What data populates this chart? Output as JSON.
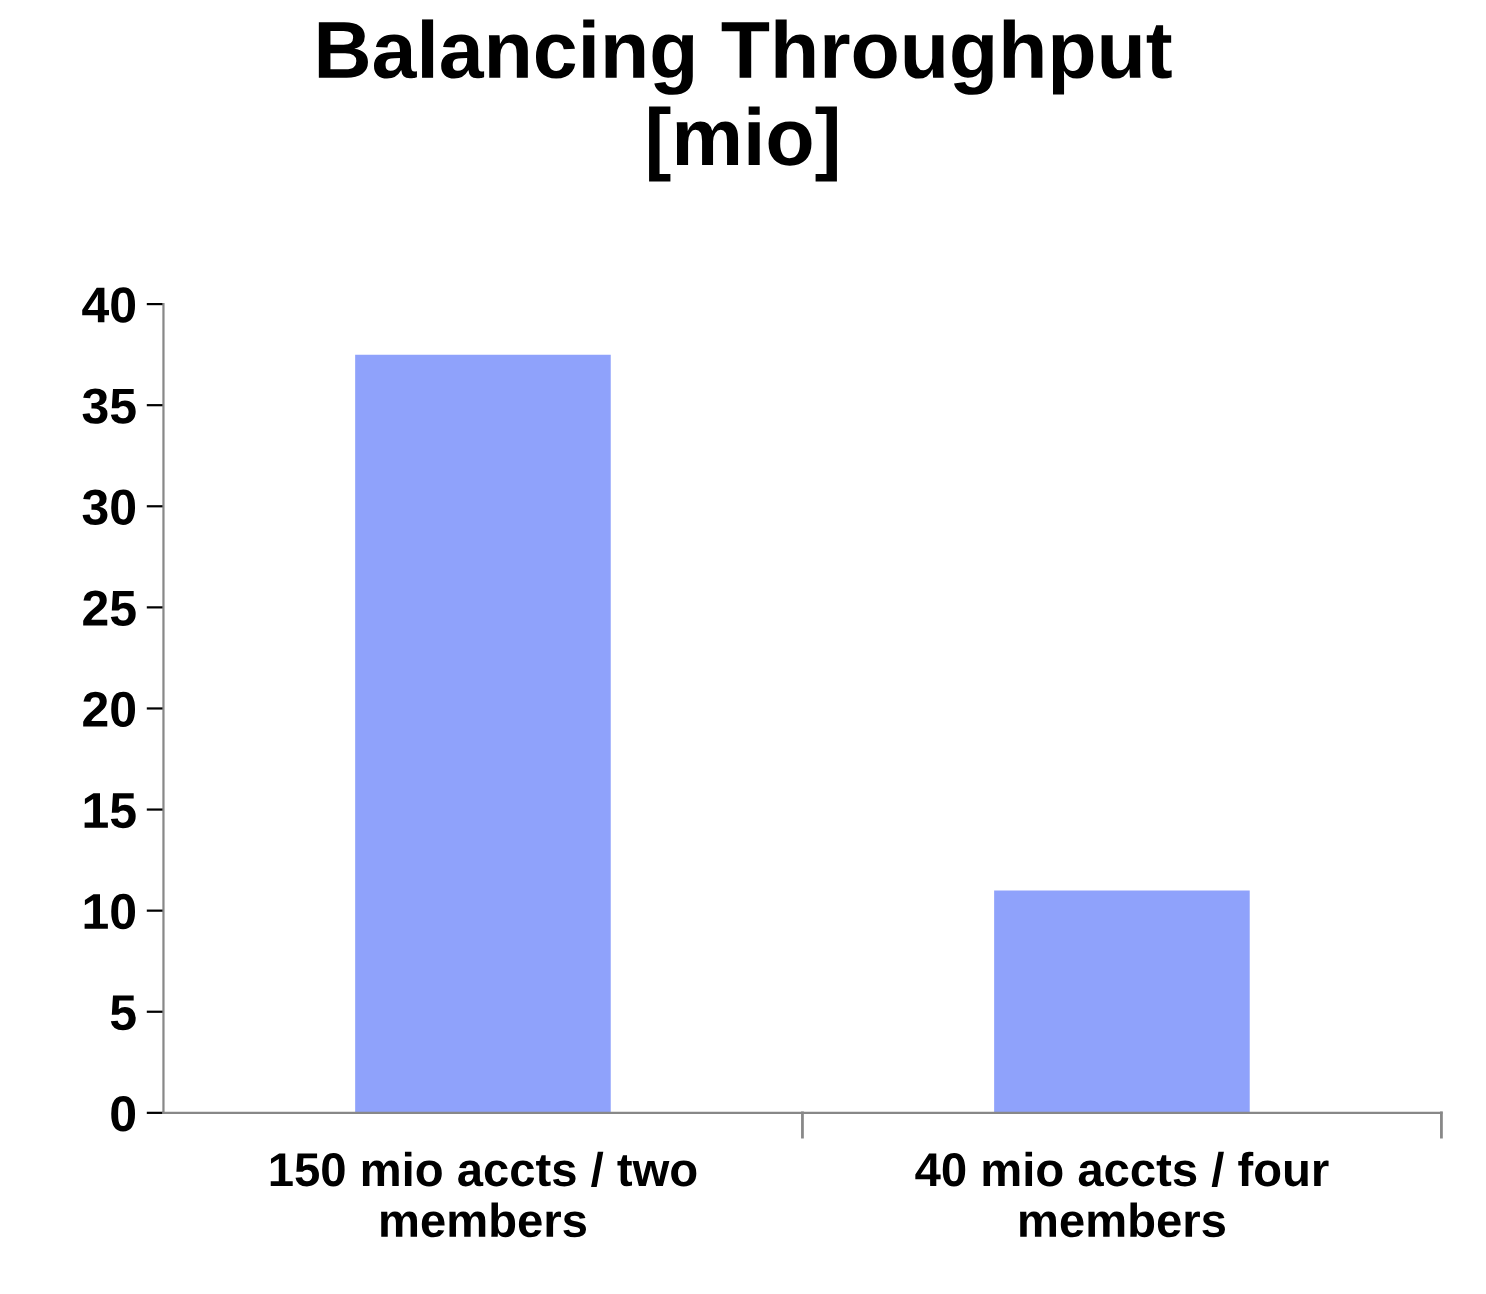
{
  "chart_data": {
    "type": "bar",
    "title": "Balancing Throughput\n[mio]",
    "categories": [
      "150 mio accts / two\nmembers",
      "40 mio accts / four\nmembers"
    ],
    "values": [
      37.5,
      11
    ],
    "color": "#8fa2fb",
    "ylim": [
      0,
      40
    ],
    "yticks": [
      0,
      5,
      10,
      15,
      20,
      25,
      30,
      35,
      40
    ],
    "grid": false
  }
}
